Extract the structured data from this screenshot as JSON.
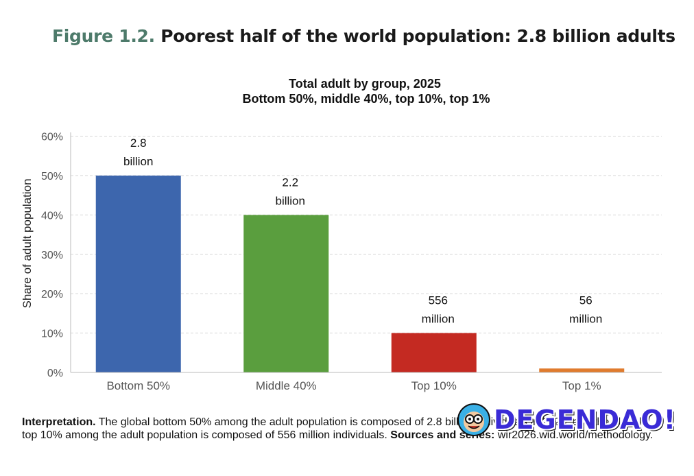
{
  "figure": {
    "number": "Figure 1.2.",
    "title": "Poorest half of the world population: 2.8 billion adults"
  },
  "chart_data": {
    "type": "bar",
    "title": "Total adult by group, 2025",
    "subtitle": "Bottom 50%, middle 40%, top 10%, top 1%",
    "xlabel": "",
    "ylabel": "Share of adult population",
    "ylim": [
      0,
      0.65
    ],
    "yticks": [
      0,
      0.1,
      0.2,
      0.3,
      0.4,
      0.5,
      0.6
    ],
    "ytick_labels": [
      "0%",
      "10%",
      "20%",
      "30%",
      "40%",
      "50%",
      "60%"
    ],
    "grid": true,
    "categories": [
      "Bottom 50%",
      "Middle 40%",
      "Top 10%",
      "Top 1%"
    ],
    "values": [
      0.5,
      0.4,
      0.1,
      0.01
    ],
    "colors": [
      "#3d66ad",
      "#5a9e3e",
      "#c42a22",
      "#e07b2e"
    ],
    "data_labels": [
      [
        "2.8",
        "billion"
      ],
      [
        "2.2",
        "billion"
      ],
      [
        "556",
        "million"
      ],
      [
        "56",
        "million"
      ]
    ]
  },
  "footer": {
    "interp_label": "Interpretation.",
    "interp_text": " The global bottom 50% among the adult population is composed of 2.8 billion individuals in 2025, and the global top 10% among the adult population is composed of 556 million individuals. ",
    "sources_label": "Sources and series:",
    "sources_text": " wir2026.wid.world/methodology."
  },
  "watermark": {
    "text": "DEGENDAO!",
    "icon": "cartoon-face-icon"
  }
}
